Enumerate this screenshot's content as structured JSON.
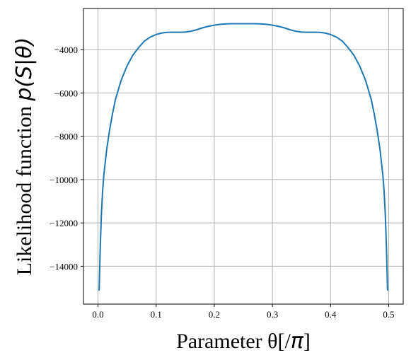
{
  "chart_data": {
    "type": "line",
    "title": "",
    "xlabel_prefix": "Parameter θ[/",
    "xlabel_math": "π",
    "xlabel_suffix": "]",
    "ylabel_prefix": "Likelihood function ",
    "ylabel_math": "p(S|θ)",
    "xlim": [
      -0.025,
      0.525
    ],
    "ylim": [
      -15750,
      -2100
    ],
    "xticks": [
      0.0,
      0.1,
      0.2,
      0.3,
      0.4,
      0.5
    ],
    "xtick_labels": [
      "0.0",
      "0.1",
      "0.2",
      "0.3",
      "0.4",
      "0.5"
    ],
    "yticks": [
      -14000,
      -12000,
      -10000,
      -8000,
      -6000,
      -4000
    ],
    "ytick_labels": [
      "−14000",
      "−12000",
      "−10000",
      "−8000",
      "−6000",
      "−4000"
    ],
    "grid": true,
    "series": [
      {
        "color": "#1f77b4",
        "x": [
          0.002,
          0.004,
          0.006,
          0.008,
          0.01,
          0.015,
          0.02,
          0.025,
          0.03,
          0.04,
          0.05,
          0.06,
          0.07,
          0.08,
          0.09,
          0.1,
          0.11,
          0.12,
          0.13,
          0.14,
          0.15,
          0.16,
          0.17,
          0.18,
          0.19,
          0.2,
          0.21,
          0.22,
          0.23,
          0.24,
          0.25,
          0.26,
          0.27,
          0.28,
          0.29,
          0.3,
          0.31,
          0.32,
          0.33,
          0.34,
          0.35,
          0.36,
          0.37,
          0.38,
          0.39,
          0.4,
          0.41,
          0.42,
          0.43,
          0.44,
          0.45,
          0.46,
          0.47,
          0.475,
          0.48,
          0.485,
          0.49,
          0.492,
          0.494,
          0.496,
          0.498
        ],
        "values": [
          -15100,
          -13000,
          -11500,
          -10500,
          -9800,
          -8600,
          -7700,
          -6950,
          -6300,
          -5400,
          -4750,
          -4250,
          -3900,
          -3600,
          -3420,
          -3300,
          -3230,
          -3200,
          -3200,
          -3200,
          -3190,
          -3150,
          -3080,
          -2990,
          -2920,
          -2870,
          -2830,
          -2810,
          -2800,
          -2800,
          -2800,
          -2800,
          -2800,
          -2810,
          -2830,
          -2870,
          -2920,
          -2990,
          -3080,
          -3150,
          -3190,
          -3200,
          -3200,
          -3200,
          -3230,
          -3300,
          -3420,
          -3600,
          -3900,
          -4250,
          -4750,
          -5400,
          -6300,
          -6950,
          -7700,
          -8600,
          -9800,
          -10500,
          -11500,
          -13000,
          -15100
        ]
      }
    ]
  }
}
